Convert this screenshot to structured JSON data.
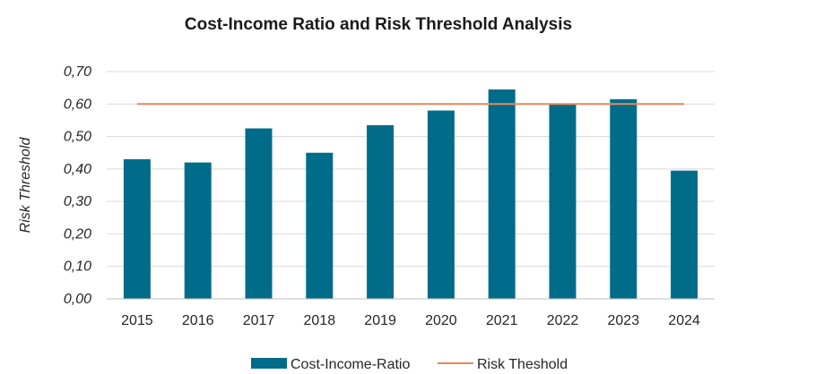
{
  "chart_data": {
    "type": "bar",
    "title": "Cost-Income Ratio and Risk Threshold Analysis",
    "xlabel": "",
    "ylabel": "Risk Threshold",
    "categories": [
      "2015",
      "2016",
      "2017",
      "2018",
      "2019",
      "2020",
      "2021",
      "2022",
      "2023",
      "2024"
    ],
    "series": [
      {
        "name": "Cost-Income-Ratio",
        "type": "bar",
        "color": "#006C89",
        "values": [
          0.43,
          0.42,
          0.525,
          0.45,
          0.535,
          0.58,
          0.645,
          0.6,
          0.615,
          0.395
        ]
      },
      {
        "name": "Risk Theshold",
        "type": "line",
        "color": "#E8875A",
        "values": [
          0.6,
          0.6,
          0.6,
          0.6,
          0.6,
          0.6,
          0.6,
          0.6,
          0.6,
          0.6
        ]
      }
    ],
    "ylim": [
      0,
      0.7
    ],
    "yticks": [
      "0,00",
      "0,10",
      "0,20",
      "0,30",
      "0,40",
      "0,50",
      "0,60",
      "0,70"
    ],
    "ytick_values": [
      0,
      0.1,
      0.2,
      0.3,
      0.4,
      0.5,
      0.6,
      0.7
    ],
    "grid": true,
    "legend": "bottom",
    "colors": {
      "grid": "#D9D9D9",
      "axis": "#BFBFBF"
    }
  }
}
